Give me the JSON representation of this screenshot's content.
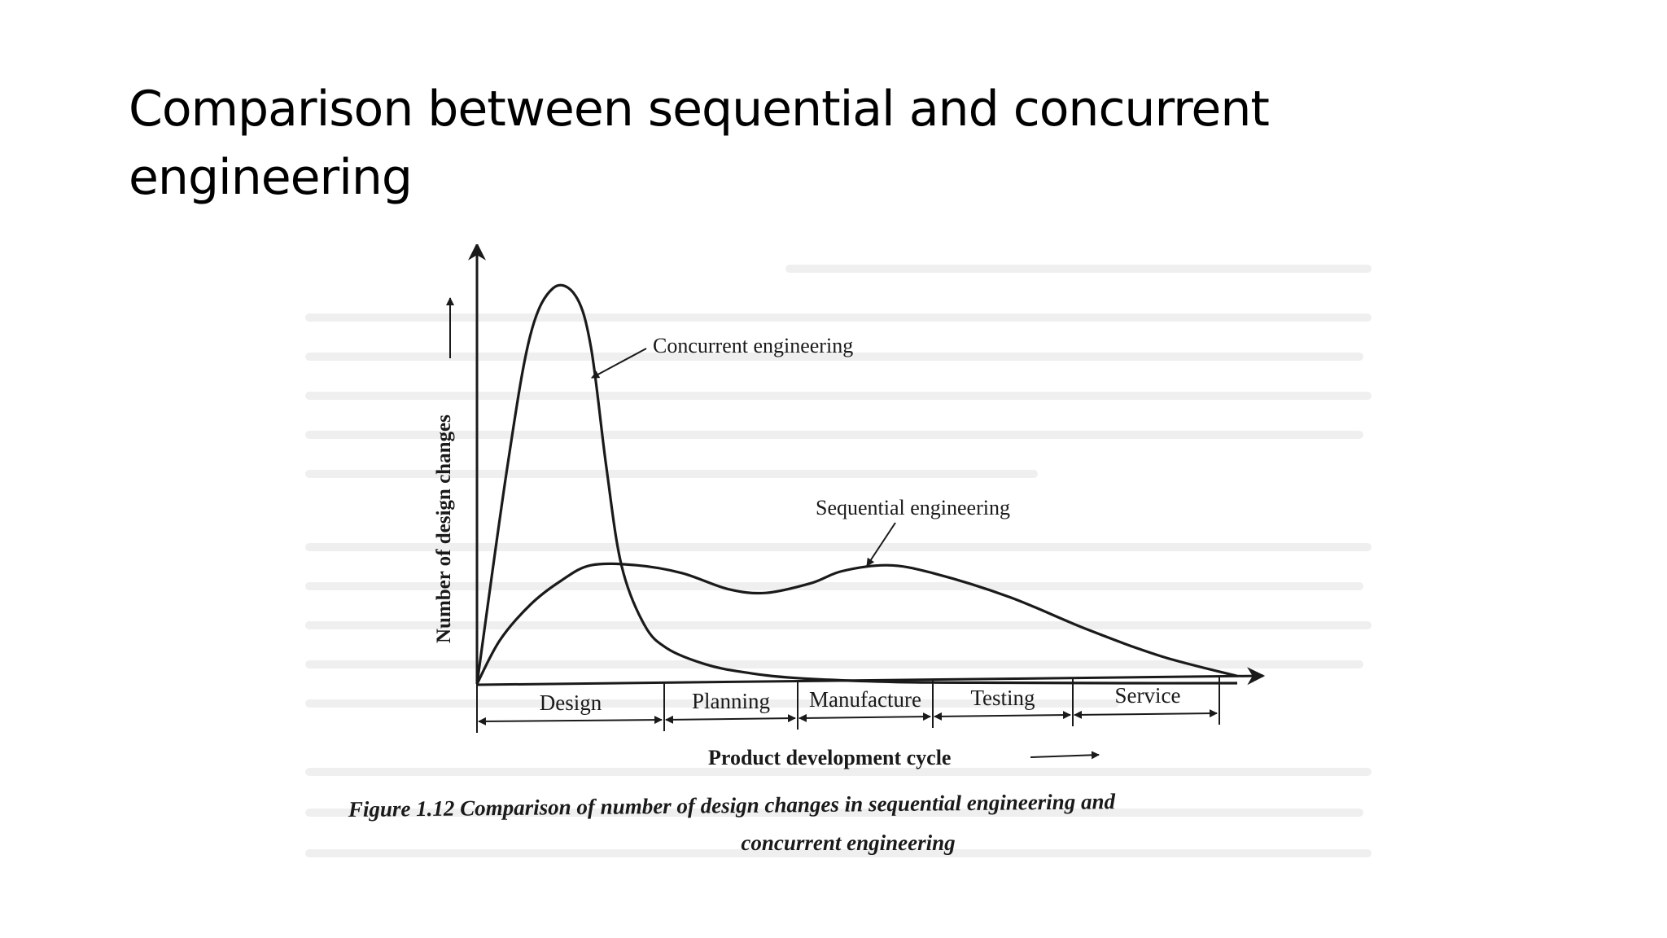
{
  "slide": {
    "title": "Comparison between sequential and concurrent engineering"
  },
  "chart_data": {
    "type": "line",
    "title": "",
    "caption_line1": "Figure 1.12 Comparison of number of design changes in sequential engineering and",
    "caption_line2": "concurrent engineering",
    "xlabel": "Product development cycle",
    "ylabel": "Number of design changes",
    "grid": false,
    "phases": [
      "Design",
      "Planning",
      "Manufacture",
      "Testing",
      "Service"
    ],
    "xlim": [
      0,
      100
    ],
    "ylim": [
      0,
      100
    ],
    "series": [
      {
        "name": "Concurrent engineering",
        "x": [
          0,
          4,
          7,
          10,
          13,
          15,
          17,
          19,
          22,
          25,
          30,
          35,
          42,
          55,
          70,
          85,
          100
        ],
        "y": [
          0,
          55,
          88,
          100,
          98,
          85,
          55,
          30,
          15,
          9,
          5,
          3,
          1.5,
          0.5,
          0.3,
          0.2,
          0.2
        ]
      },
      {
        "name": "Sequential engineering",
        "x": [
          0,
          3,
          7,
          11,
          15,
          21,
          27,
          33,
          38,
          44,
          48,
          54,
          60,
          70,
          80,
          90,
          100
        ],
        "y": [
          0,
          11,
          20,
          26,
          30,
          30,
          28,
          24,
          23,
          25.5,
          28.5,
          30,
          28,
          22,
          14,
          7,
          2
        ]
      }
    ]
  },
  "colors": {
    "ink": "#1a1a1a",
    "background": "#ffffff",
    "page_ghost": "#f1f1f1"
  }
}
